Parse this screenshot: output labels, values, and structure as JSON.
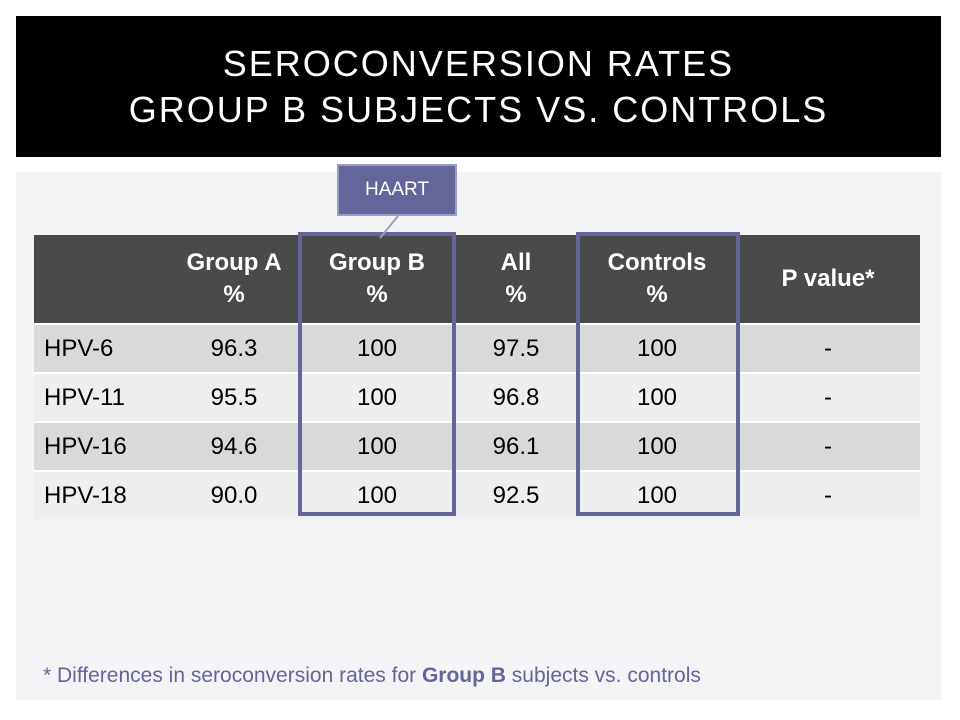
{
  "title": {
    "line1": "SEROCONVERSION RATES",
    "line2": "GROUP B SUBJECTS VS. CONTROLS"
  },
  "callout": "HAART",
  "table": {
    "headers": [
      {
        "line1": "",
        "line2": ""
      },
      {
        "line1": "Group A",
        "line2": "%"
      },
      {
        "line1": "Group B",
        "line2": "%"
      },
      {
        "line1": "All",
        "line2": "%"
      },
      {
        "line1": "Controls",
        "line2": "%"
      },
      {
        "line1": "P value*",
        "line2": ""
      }
    ],
    "rows": [
      [
        "HPV-6",
        "96.3",
        "100",
        "97.5",
        "100",
        "-"
      ],
      [
        "HPV-11",
        "95.5",
        "100",
        "96.8",
        "100",
        "-"
      ],
      [
        "HPV-16",
        "94.6",
        "100",
        "96.1",
        "100",
        "-"
      ],
      [
        "HPV-18",
        "90.0",
        "100",
        "92.5",
        "100",
        "-"
      ]
    ]
  },
  "footnote": {
    "prefix": "* Differences in seroconversion rates for ",
    "bold": "Group B",
    "suffix": " subjects vs. controls"
  },
  "colors": {
    "header_bg": "#4a4a4a",
    "highlight": "#64659a",
    "row_dark": "#d9d9d9",
    "row_light": "#eeeeee"
  }
}
